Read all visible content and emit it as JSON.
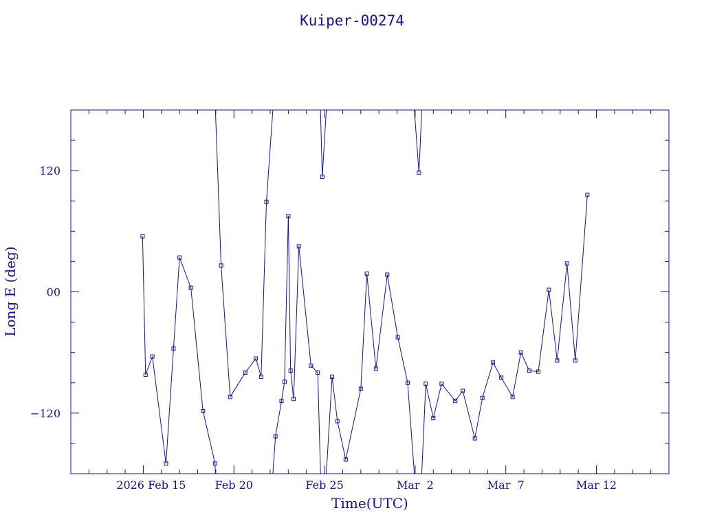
{
  "chart_data": {
    "type": "scatter",
    "title": "Kuiper-00274",
    "xlabel": "Time(UTC)",
    "ylabel": "Long E (deg)",
    "x_tick_labels": [
      {
        "day": 15,
        "label": "2026 Feb 15"
      },
      {
        "day": 20,
        "label": "Feb 20"
      },
      {
        "day": 25,
        "label": "Feb 25"
      },
      {
        "day": 30,
        "label": "Mar  2"
      },
      {
        "day": 35,
        "label": "Mar  7"
      },
      {
        "day": 40,
        "label": "Mar 12"
      }
    ],
    "y_tick_labels": [
      {
        "value": 120,
        "label": "120"
      },
      {
        "value": 0,
        "label": "00"
      },
      {
        "value": -120,
        "label": "−120"
      }
    ],
    "xlim": [
      "2026-02-11",
      "2026-03-16"
    ],
    "ylim": [
      -180,
      180
    ],
    "grid": false,
    "series": [
      {
        "x": [
          "2026-02-14 23:00",
          "2026-02-15 03:00",
          "2026-02-15 12:00",
          "2026-02-16 06:00",
          "2026-02-16 16:00",
          "2026-02-17 00:00",
          "2026-02-17 15:00",
          "2026-02-18 07:00",
          "2026-02-18 23:00",
          "2026-02-19 07:00",
          "2026-02-19 19:00",
          "2026-02-20 15:00",
          "2026-02-21 05:00",
          "2026-02-21 12:00",
          "2026-02-21 19:00",
          "2026-02-22 07:00",
          "2026-02-22 15:00",
          "2026-02-22 19:00",
          "2026-02-23 00:00",
          "2026-02-23 03:00",
          "2026-02-23 07:00",
          "2026-02-23 14:00",
          "2026-02-24 06:00",
          "2026-02-24 15:00",
          "2026-02-24 21:00",
          "2026-02-25 10:00",
          "2026-02-25 17:00",
          "2026-02-26 04:00",
          "2026-02-27 00:00",
          "2026-02-27 08:00",
          "2026-02-27 20:00",
          "2026-02-28 11:00",
          "2026-03-01 01:00",
          "2026-03-01 14:00",
          "2026-03-02 05:00",
          "2026-03-02 14:00",
          "2026-03-03 00:00",
          "2026-03-03 11:00",
          "2026-03-04 05:00",
          "2026-03-04 15:00",
          "2026-03-05 07:00",
          "2026-03-05 17:00",
          "2026-03-06 07:00",
          "2026-03-06 18:00",
          "2026-03-07 09:00",
          "2026-03-07 20:00",
          "2026-03-08 07:00",
          "2026-03-08 19:00",
          "2026-03-09 09:00",
          "2026-03-09 20:00",
          "2026-03-10 09:00",
          "2026-03-10 20:00",
          "2026-03-11 12:00"
        ],
        "y": [
          55,
          -82,
          -64,
          -170,
          -56,
          34,
          4,
          -118,
          -170,
          26,
          -104,
          -80,
          -66,
          -84,
          89,
          -143,
          -108,
          -89,
          75,
          -78,
          -106,
          45,
          -73,
          -80,
          114,
          -84,
          -128,
          -166,
          -96,
          18,
          -76,
          17,
          -45,
          -90,
          118,
          -91,
          -125,
          -91,
          -108,
          -98,
          -145,
          -105,
          -70,
          -85,
          -104,
          -60,
          -78,
          -79,
          2,
          -68,
          28,
          -68,
          96
        ]
      }
    ]
  }
}
